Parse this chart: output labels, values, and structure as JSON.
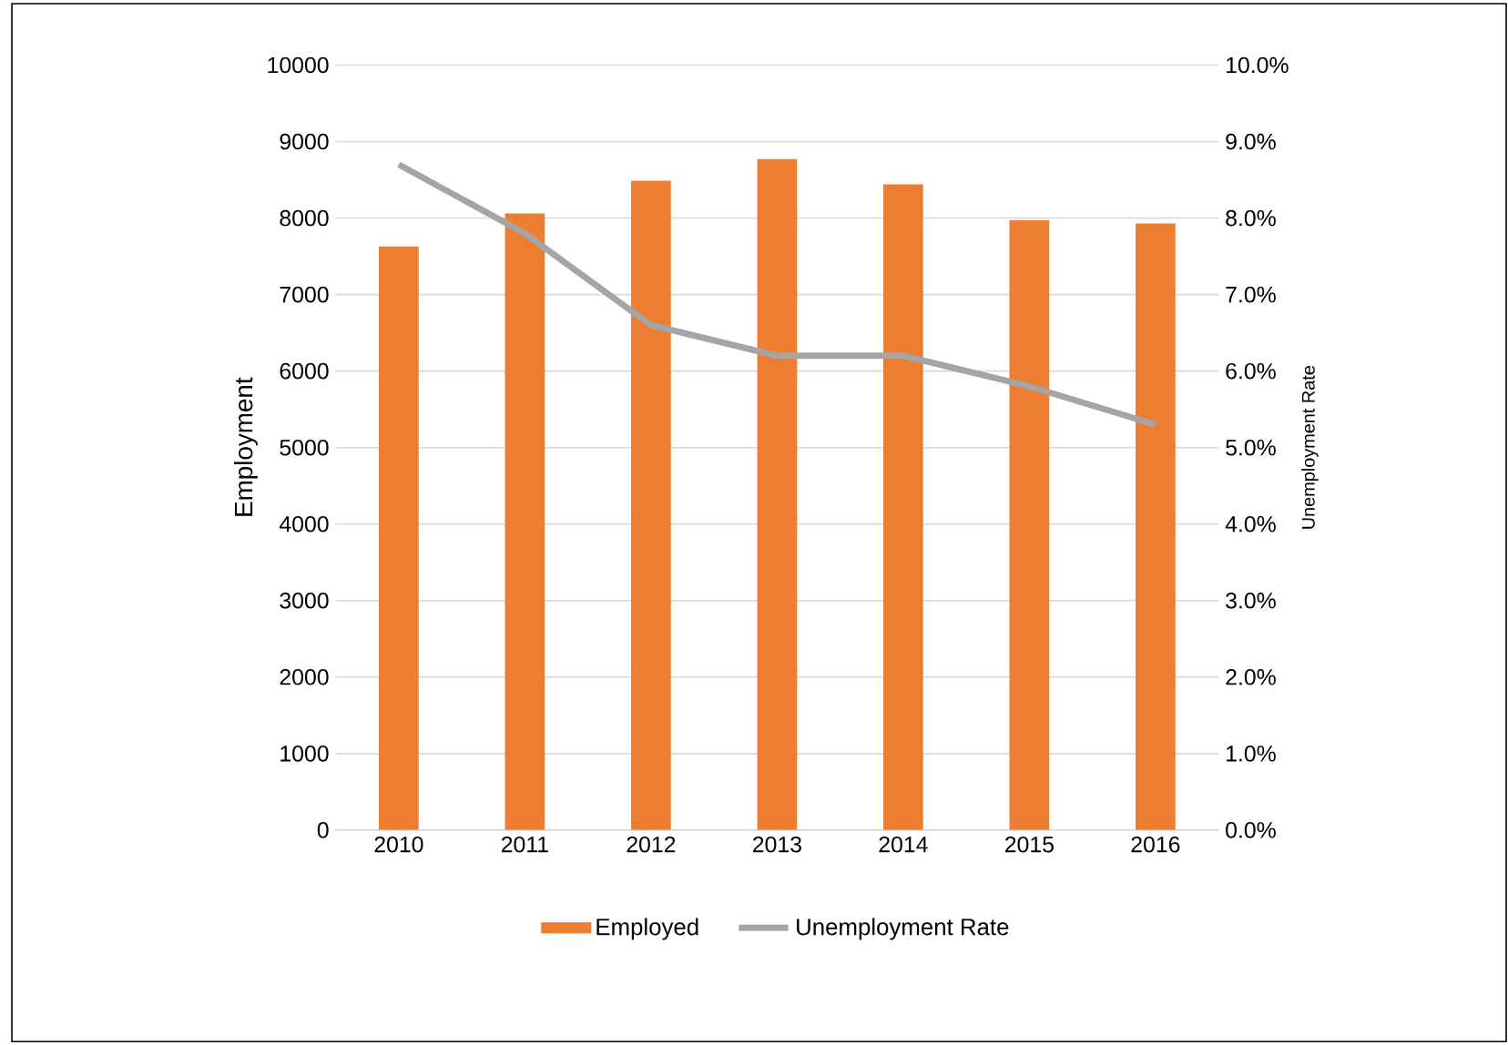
{
  "chart_data": {
    "type": "bar",
    "categories": [
      "2010",
      "2011",
      "2012",
      "2013",
      "2014",
      "2015",
      "2016"
    ],
    "series": [
      {
        "name": "Employed",
        "color": "#ed7d31",
        "values": [
          7630,
          8060,
          8490,
          8770,
          8440,
          7970,
          7930
        ]
      },
      {
        "name": "Unemployment Rate",
        "type": "line",
        "axis": "y2",
        "color": "#a5a5a5",
        "marker": "none",
        "line_style": "solid",
        "values": [
          8.7,
          7.8,
          6.6,
          6.2,
          6.2,
          5.8,
          5.3
        ]
      }
    ],
    "ylabel": "Employment",
    "y2label": "Unemployment  Rate",
    "ylim": [
      0,
      10000
    ],
    "yticks": [
      0,
      1000,
      2000,
      3000,
      4000,
      5000,
      6000,
      7000,
      8000,
      9000,
      10000
    ],
    "y2lim": [
      0,
      10
    ],
    "y2ticks": [
      {
        "value": 0,
        "label": "0.0%"
      },
      {
        "value": 1,
        "label": "1.0%"
      },
      {
        "value": 2,
        "label": "2.0%"
      },
      {
        "value": 3,
        "label": "3.0%"
      },
      {
        "value": 4,
        "label": "4.0%"
      },
      {
        "value": 5,
        "label": "5.0%"
      },
      {
        "value": 6,
        "label": "6.0%"
      },
      {
        "value": 7,
        "label": "7.0%"
      },
      {
        "value": 8,
        "label": "8.0%"
      },
      {
        "value": 9,
        "label": "9.0%"
      },
      {
        "value": 10,
        "label": "10.0%"
      }
    ],
    "grid": "y",
    "legend": "bottom"
  }
}
